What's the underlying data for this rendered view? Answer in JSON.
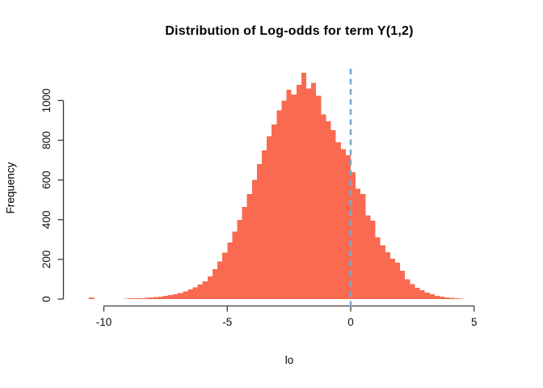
{
  "title": "Distribution of Log-odds for term Y(1,2)",
  "chart_data": {
    "type": "bar",
    "subtype": "histogram",
    "title": "Distribution of Log-odds for term Y(1,2)",
    "xlabel": "lo",
    "ylabel": "Frequency",
    "bin_start": -10.6,
    "bin_width": 0.2,
    "values": [
      8,
      0,
      0,
      0,
      0,
      0,
      0,
      3,
      4,
      4,
      5,
      6,
      8,
      10,
      13,
      16,
      20,
      25,
      31,
      39,
      48,
      60,
      73,
      90,
      115,
      150,
      190,
      235,
      285,
      340,
      400,
      465,
      530,
      600,
      680,
      750,
      820,
      880,
      950,
      1000,
      1055,
      1030,
      1080,
      1140,
      1060,
      1090,
      1025,
      930,
      895,
      850,
      790,
      755,
      725,
      640,
      556,
      529,
      421,
      394,
      312,
      271,
      237,
      204,
      183,
      142,
      100,
      75,
      58,
      45,
      33,
      24,
      17,
      12,
      9,
      6,
      4,
      3
    ],
    "x_ticks": [
      -10,
      -5,
      0,
      5
    ],
    "x_tick_labels": [
      "-10",
      "-5",
      "0",
      "5"
    ],
    "y_ticks": [
      0,
      200,
      400,
      600,
      800,
      1000
    ],
    "y_tick_labels": [
      "0",
      "200",
      "400",
      "600",
      "800",
      "1000"
    ],
    "xlim": [
      -10,
      5
    ],
    "ylim": [
      0,
      1150
    ],
    "grid": false,
    "legend": null,
    "reference_line": {
      "x": 0,
      "style": "dashed",
      "color": "#7AA7D1"
    },
    "bar_color": "#FA6A51",
    "axis_color": "#3A3A3A",
    "text_color": "#111111"
  }
}
